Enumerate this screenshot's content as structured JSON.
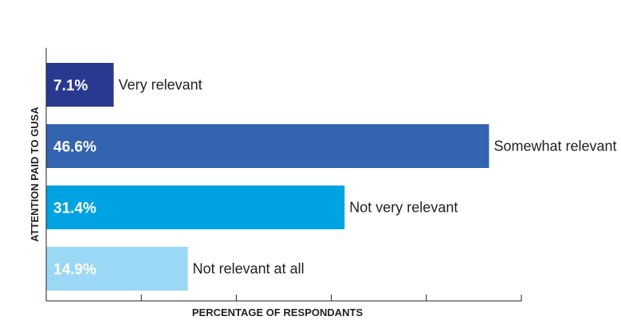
{
  "chart_data": {
    "type": "bar",
    "orientation": "horizontal",
    "categories": [
      "Very relevant",
      "Somewhat relevant",
      "Not very relevant",
      "Not relevant at all"
    ],
    "values": [
      7.1,
      46.6,
      31.4,
      14.9
    ],
    "value_labels": [
      "7.1%",
      "46.6%",
      "31.4%",
      "14.9%"
    ],
    "colors": [
      "#2a3990",
      "#3463b0",
      "#00a3e1",
      "#9ad8f5"
    ],
    "xlabel": "PERCENTAGE OF RESPONDANTS",
    "ylabel": "ATTENTION PAID TO GUSA",
    "xlim": [
      0,
      50
    ],
    "x_ticks": [
      0,
      10,
      20,
      30,
      40,
      50
    ],
    "grid": false,
    "legend": "none"
  }
}
